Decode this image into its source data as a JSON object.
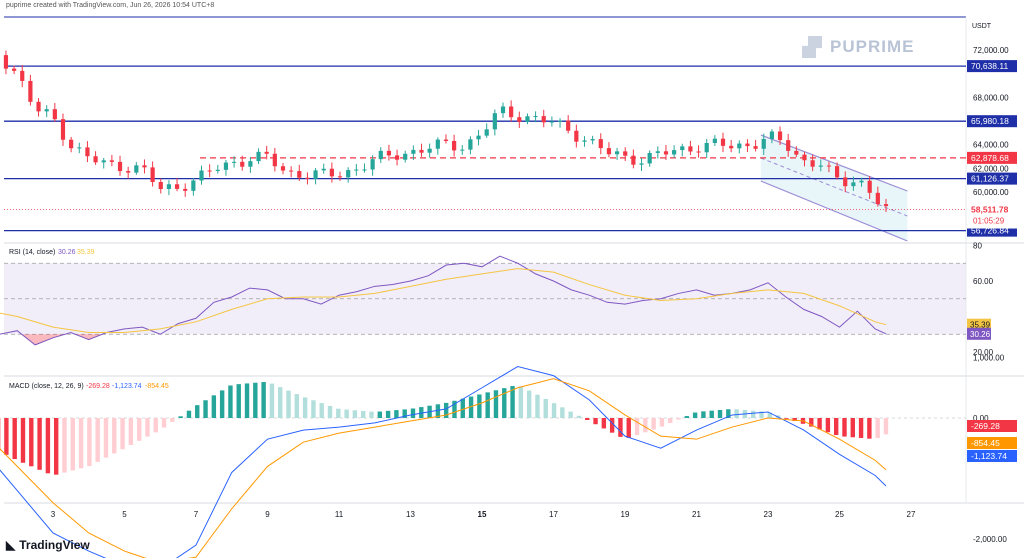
{
  "credit": "puprime created with TradingView.com, Jun 26, 2026 10:54 UTC+8",
  "brand": {
    "name": "PUPRIME"
  },
  "footer": {
    "logo_text": "TradingView"
  },
  "colors": {
    "up": "#26a69a",
    "down": "#f23645",
    "level_line": "#1e2fa8",
    "dash_line": "#f23645",
    "rsi": "#7e57c2",
    "rsi_ma": "#f4c542",
    "macd": "#2962ff",
    "signal": "#ff9800",
    "channel": "#9c8fd6"
  },
  "chart_data": [
    {
      "type": "candlestick",
      "title": "",
      "currency": "USDT",
      "x_ticks": [
        "3",
        "5",
        "7",
        "9",
        "11",
        "13",
        "15",
        "17",
        "19",
        "21",
        "23",
        "25",
        "27"
      ],
      "y_ticks": [
        "72,000.00",
        "68,000.00",
        "64,000.00",
        "62,000.00",
        "60,000.00"
      ],
      "ylim": [
        56500,
        74000
      ],
      "levels": [
        {
          "label": "70,638.11",
          "value": 70638.11,
          "style": "solid"
        },
        {
          "label": "65,980.18",
          "value": 65980.18,
          "style": "solid"
        },
        {
          "label": "62,878.68",
          "value": 62878.68,
          "style": "dashed"
        },
        {
          "label": "61,126.37",
          "value": 61126.37,
          "style": "solid"
        },
        {
          "label": "56,726.84",
          "value": 56726.84,
          "style": "solid"
        }
      ],
      "last_price": {
        "label": "58,511.78",
        "value": 58511.78,
        "countdown": "01:05:29"
      },
      "channel_label": "descending channel",
      "close_path": [
        [
          1.0,
          73000
        ],
        [
          1.5,
          71600
        ],
        [
          2.0,
          70000
        ],
        [
          2.5,
          66900
        ],
        [
          3.0,
          66300
        ],
        [
          3.5,
          64000
        ],
        [
          4.0,
          62800
        ],
        [
          4.5,
          62300
        ],
        [
          5.0,
          62200
        ],
        [
          5.5,
          61900
        ],
        [
          6.0,
          60200
        ],
        [
          6.5,
          60500
        ],
        [
          7.0,
          61000
        ],
        [
          7.5,
          61900
        ],
        [
          8.0,
          62500
        ],
        [
          8.5,
          62800
        ],
        [
          9.0,
          62900
        ],
        [
          9.5,
          61700
        ],
        [
          10.0,
          61500
        ],
        [
          10.5,
          61400
        ],
        [
          11.0,
          61500
        ],
        [
          11.5,
          62000
        ],
        [
          12.0,
          62700
        ],
        [
          12.5,
          63100
        ],
        [
          13.0,
          63400
        ],
        [
          13.5,
          63700
        ],
        [
          14.0,
          64000
        ],
        [
          14.5,
          63900
        ],
        [
          15.0,
          65000
        ],
        [
          15.5,
          66800
        ],
        [
          16.0,
          66500
        ],
        [
          16.5,
          66200
        ],
        [
          17.0,
          65800
        ],
        [
          17.5,
          65100
        ],
        [
          18.0,
          64300
        ],
        [
          18.5,
          63300
        ],
        [
          19.0,
          62900
        ],
        [
          19.5,
          62800
        ],
        [
          20.0,
          63200
        ],
        [
          20.5,
          63500
        ],
        [
          21.0,
          63900
        ],
        [
          21.5,
          64000
        ],
        [
          22.0,
          63800
        ],
        [
          22.5,
          64000
        ],
        [
          23.0,
          64700
        ],
        [
          23.5,
          63900
        ],
        [
          24.0,
          62600
        ],
        [
          24.5,
          62500
        ],
        [
          25.0,
          60500
        ],
        [
          25.5,
          61200
        ],
        [
          26.0,
          59600
        ],
        [
          26.3,
          58512
        ]
      ]
    },
    {
      "type": "line",
      "title": "RSI (14, close)",
      "values_label": [
        "30.26",
        "35.39"
      ],
      "series": [
        {
          "name": "RSI",
          "last": 30.26
        },
        {
          "name": "RSI-based MA",
          "last": 35.39
        }
      ],
      "y_ticks": [
        "80",
        "60.00",
        "20.00"
      ],
      "ylim": [
        15,
        82
      ],
      "bands": [
        70,
        50,
        30
      ],
      "rsi_path": [
        [
          1,
          33
        ],
        [
          1.5,
          30
        ],
        [
          2,
          32
        ],
        [
          2.5,
          24
        ],
        [
          3,
          28
        ],
        [
          3.5,
          31
        ],
        [
          4,
          27
        ],
        [
          4.5,
          31
        ],
        [
          5,
          33
        ],
        [
          5.5,
          34
        ],
        [
          6,
          30
        ],
        [
          6.5,
          36
        ],
        [
          7,
          39
        ],
        [
          7.5,
          48
        ],
        [
          8,
          51
        ],
        [
          8.5,
          56
        ],
        [
          9,
          55
        ],
        [
          9.5,
          50
        ],
        [
          10,
          50
        ],
        [
          10.5,
          47
        ],
        [
          11,
          52
        ],
        [
          11.5,
          54
        ],
        [
          12,
          57
        ],
        [
          12.5,
          58
        ],
        [
          13,
          60
        ],
        [
          13.5,
          63
        ],
        [
          14,
          69
        ],
        [
          14.5,
          70
        ],
        [
          15,
          68
        ],
        [
          15.5,
          74
        ],
        [
          16,
          70
        ],
        [
          16.5,
          64
        ],
        [
          17,
          60
        ],
        [
          17.5,
          55
        ],
        [
          18,
          52
        ],
        [
          18.5,
          48
        ],
        [
          19,
          47
        ],
        [
          19.5,
          49
        ],
        [
          20,
          50
        ],
        [
          20.5,
          53
        ],
        [
          21,
          55
        ],
        [
          21.5,
          52
        ],
        [
          22,
          53
        ],
        [
          22.5,
          55
        ],
        [
          23,
          59
        ],
        [
          23.5,
          51
        ],
        [
          24,
          44
        ],
        [
          24.5,
          40
        ],
        [
          25,
          34
        ],
        [
          25.5,
          43
        ],
        [
          26,
          33
        ],
        [
          26.3,
          30.26
        ]
      ],
      "ma_path": [
        [
          1,
          44
        ],
        [
          2,
          40
        ],
        [
          3,
          34
        ],
        [
          4,
          31
        ],
        [
          5,
          31
        ],
        [
          6,
          33
        ],
        [
          7,
          37
        ],
        [
          8,
          44
        ],
        [
          9,
          50
        ],
        [
          10,
          51
        ],
        [
          11,
          51
        ],
        [
          12,
          53
        ],
        [
          13,
          57
        ],
        [
          14,
          61
        ],
        [
          15,
          64
        ],
        [
          16,
          67
        ],
        [
          17,
          65
        ],
        [
          18,
          58
        ],
        [
          19,
          52
        ],
        [
          20,
          49
        ],
        [
          21,
          50
        ],
        [
          22,
          53
        ],
        [
          23,
          55
        ],
        [
          24,
          53
        ],
        [
          25,
          46
        ],
        [
          26,
          37
        ],
        [
          26.3,
          35.39
        ]
      ]
    },
    {
      "type": "bar",
      "title": "MACD (close, 12, 26, 9)",
      "values_label": [
        "-269.28",
        "-1,123.74",
        "-854.45"
      ],
      "series": [
        {
          "name": "Histogram",
          "last": -269.28
        },
        {
          "name": "MACD",
          "last": -1123.74
        },
        {
          "name": "Signal",
          "last": -854.45
        }
      ],
      "y_ticks": [
        "1,000.00",
        "0.00",
        "-2,000.00"
      ],
      "ylim": [
        -2600,
        1400
      ],
      "histogram_path": [
        [
          1,
          -400
        ],
        [
          2,
          -700
        ],
        [
          3,
          -950
        ],
        [
          4,
          -800
        ],
        [
          5,
          -500
        ],
        [
          6,
          -200
        ],
        [
          7,
          200
        ],
        [
          8,
          550
        ],
        [
          9,
          600
        ],
        [
          10,
          350
        ],
        [
          11,
          150
        ],
        [
          12,
          100
        ],
        [
          13,
          150
        ],
        [
          14,
          250
        ],
        [
          15,
          400
        ],
        [
          16,
          550
        ],
        [
          17,
          250
        ],
        [
          18,
          -50
        ],
        [
          19,
          -350
        ],
        [
          20,
          -150
        ],
        [
          21,
          100
        ],
        [
          22,
          150
        ],
        [
          23,
          100
        ],
        [
          24,
          -100
        ],
        [
          25,
          -300
        ],
        [
          26,
          -350
        ],
        [
          26.3,
          -269
        ]
      ],
      "macd_path": [
        [
          1,
          -500
        ],
        [
          2,
          -1200
        ],
        [
          3,
          -1900
        ],
        [
          4,
          -2200
        ],
        [
          5,
          -2450
        ],
        [
          6,
          -2500
        ],
        [
          7,
          -2100
        ],
        [
          8,
          -900
        ],
        [
          9,
          -350
        ],
        [
          10,
          -200
        ],
        [
          11,
          -150
        ],
        [
          12,
          -80
        ],
        [
          13,
          50
        ],
        [
          14,
          150
        ],
        [
          15,
          500
        ],
        [
          16,
          850
        ],
        [
          17,
          700
        ],
        [
          18,
          300
        ],
        [
          19,
          -300
        ],
        [
          20,
          -500
        ],
        [
          21,
          -200
        ],
        [
          22,
          50
        ],
        [
          23,
          100
        ],
        [
          24,
          -200
        ],
        [
          25,
          -600
        ],
        [
          26,
          -950
        ],
        [
          26.3,
          -1123.74
        ]
      ],
      "signal_path": [
        [
          1,
          -200
        ],
        [
          2,
          -800
        ],
        [
          3,
          -1400
        ],
        [
          4,
          -1900
        ],
        [
          5,
          -2200
        ],
        [
          6,
          -2400
        ],
        [
          7,
          -2300
        ],
        [
          8,
          -1500
        ],
        [
          9,
          -800
        ],
        [
          10,
          -400
        ],
        [
          11,
          -250
        ],
        [
          12,
          -150
        ],
        [
          13,
          -50
        ],
        [
          14,
          50
        ],
        [
          15,
          250
        ],
        [
          16,
          500
        ],
        [
          17,
          650
        ],
        [
          18,
          450
        ],
        [
          19,
          50
        ],
        [
          20,
          -300
        ],
        [
          21,
          -350
        ],
        [
          22,
          -150
        ],
        [
          23,
          0
        ],
        [
          24,
          -50
        ],
        [
          25,
          -350
        ],
        [
          26,
          -700
        ],
        [
          26.3,
          -854.45
        ]
      ]
    }
  ]
}
